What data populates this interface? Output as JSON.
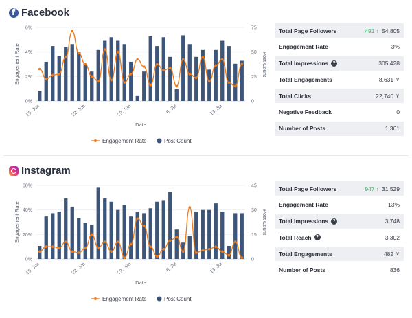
{
  "facebook": {
    "title": "Facebook",
    "chart_data": {
      "type": "bar",
      "y_left_ticks": [
        "0%",
        "2%",
        "4%",
        "6%"
      ],
      "y_right_ticks": [
        "0",
        "25",
        "50",
        "75"
      ],
      "x_ticks": [
        "15. Jun",
        "22. Jun",
        "29. Jun",
        "6. Jul",
        "13. Jul"
      ],
      "xlabel": "Date",
      "ylabel_left": "Engagement Rate",
      "ylabel_right": "Post Count",
      "ylim_left": [
        0,
        6
      ],
      "ylim_right": [
        0,
        75
      ],
      "legend": [
        "Engagement Rate",
        "Post Count"
      ],
      "series": [
        {
          "name": "Post Count",
          "kind": "bar",
          "color": "#3d5579",
          "values": [
            10,
            40,
            56,
            46,
            55,
            58,
            50,
            38,
            30,
            52,
            62,
            65,
            62,
            58,
            40,
            5,
            30,
            66,
            56,
            65,
            45,
            12,
            67,
            58,
            45,
            52,
            32,
            52,
            62,
            56,
            38,
            41
          ]
        },
        {
          "name": "Engagement Rate",
          "kind": "line",
          "color": "#f07b1d",
          "values": [
            2.6,
            1.8,
            2.1,
            2.2,
            3.6,
            5.7,
            3.9,
            3.0,
            2.0,
            1.6,
            4.2,
            1.7,
            4.0,
            1.5,
            2.2,
            3.4,
            2.8,
            1.3,
            3.0,
            2.5,
            2.7,
            1.2,
            3.4,
            2.2,
            1.9,
            3.6,
            1.6,
            2.9,
            3.4,
            1.5,
            1.2,
            3.0
          ]
        }
      ]
    },
    "stats": [
      {
        "label": "Total Page Followers",
        "delta": "491",
        "value": "54,805",
        "shaded": true,
        "arrow": true
      },
      {
        "label": "Engagement Rate",
        "delta": "",
        "value": "3%",
        "shaded": false
      },
      {
        "label": "Total Impressions",
        "delta": "",
        "value": "305,428",
        "shaded": true,
        "help": true
      },
      {
        "label": "Total Engagements",
        "delta": "",
        "value": "8,631",
        "shaded": false,
        "chevron": true
      },
      {
        "label": "Total Clicks",
        "delta": "",
        "value": "22,740",
        "shaded": true,
        "chevron": true
      },
      {
        "label": "Negative Feedback",
        "delta": "",
        "value": "0",
        "shaded": false
      },
      {
        "label": "Number of Posts",
        "delta": "",
        "value": "1,361",
        "shaded": true
      }
    ]
  },
  "instagram": {
    "title": "Instagram",
    "chart_data": {
      "type": "bar",
      "y_left_ticks": [
        "0%",
        "20%",
        "40%",
        "60%"
      ],
      "y_right_ticks": [
        "0",
        "15",
        "30",
        "45"
      ],
      "x_ticks": [
        "15. Jun",
        "22. Jun",
        "29. Jun",
        "6. Jul",
        "13. Jul"
      ],
      "xlabel": "Date",
      "ylabel_left": "Engagement Rate",
      "ylabel_right": "Post Count",
      "ylim_left": [
        0,
        60
      ],
      "ylim_right": [
        0,
        45
      ],
      "legend": [
        "Engagement Rate",
        "Post Count"
      ],
      "series": [
        {
          "name": "Post Count",
          "kind": "bar",
          "color": "#3d5579",
          "values": [
            8,
            26,
            28,
            29,
            37,
            32,
            25,
            22,
            21,
            44,
            37,
            35,
            30,
            33,
            26,
            29,
            28,
            31,
            35,
            36,
            41,
            18,
            10,
            14,
            29,
            30,
            30,
            34,
            29,
            8,
            28,
            28
          ]
        },
        {
          "name": "Engagement Rate",
          "kind": "line",
          "color": "#f07b1d",
          "values": [
            6,
            10,
            10,
            9,
            14,
            6,
            5,
            9,
            20,
            9,
            14,
            6,
            14,
            1,
            12,
            33,
            27,
            10,
            2,
            8,
            15,
            18,
            6,
            42,
            5,
            7,
            8,
            10,
            6,
            3,
            14,
            1
          ]
        }
      ]
    },
    "stats": [
      {
        "label": "Total Page Followers",
        "delta": "947",
        "value": "31,529",
        "shaded": true,
        "arrow": true
      },
      {
        "label": "Engagement Rate",
        "delta": "",
        "value": "13%",
        "shaded": false
      },
      {
        "label": "Total Impressions",
        "delta": "",
        "value": "3,748",
        "shaded": true,
        "help": true
      },
      {
        "label": "Total Reach",
        "delta": "",
        "value": "3,302",
        "shaded": false,
        "help": true
      },
      {
        "label": "Total Engagements",
        "delta": "",
        "value": "482",
        "shaded": true,
        "chevron": true
      },
      {
        "label": "Number of Posts",
        "delta": "",
        "value": "836",
        "shaded": false
      }
    ]
  },
  "icons": {
    "followers_arrow": "arrow-up-icon",
    "help": "question-circle-icon",
    "expand": "chevron-down-icon"
  }
}
